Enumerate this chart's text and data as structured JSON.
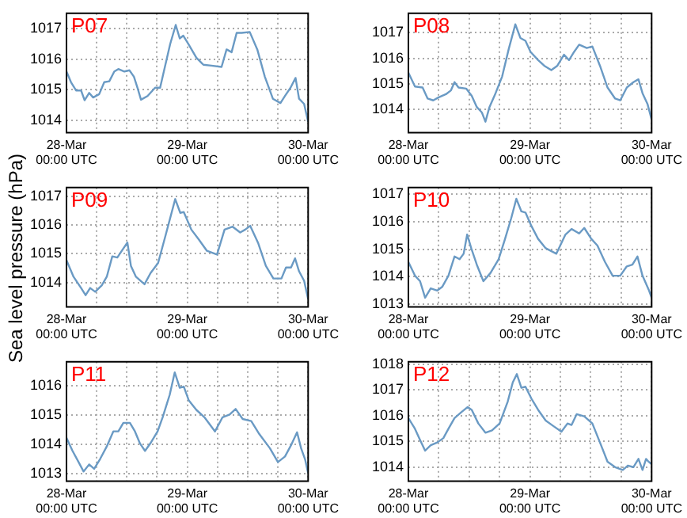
{
  "chart_data": [
    {
      "type": "line",
      "title": "P07",
      "ylabel": "Sea level pressure (hPa)",
      "color": "#6a9ac4",
      "grid": true,
      "xlim": [
        "--03-28T00:00",
        "--03-30T00:00"
      ],
      "xticks": [
        {
          "value": "--03-28T00:00",
          "label": "28-Mar\n00:00 UTC"
        },
        {
          "value": "--03-28T06:00",
          "label": null
        },
        {
          "value": "--03-28T12:00",
          "label": null
        },
        {
          "value": "--03-28T18:00",
          "label": null
        },
        {
          "value": "--03-29T00:00",
          "label": "29-Mar\n00:00 UTC"
        },
        {
          "value": "--03-29T06:00",
          "label": null
        },
        {
          "value": "--03-29T12:00",
          "label": null
        },
        {
          "value": "--03-29T18:00",
          "label": null
        },
        {
          "value": "--03-30T00:00",
          "label": "30-Mar\n00:00 UTC"
        }
      ],
      "ylim": [
        1013.6,
        1017.5
      ],
      "yticks": [
        1014,
        1015,
        1016,
        1017
      ],
      "x": [
        "--03-28T00:00",
        "--03-28T00:54",
        "--03-28T01:54",
        "--03-28T02:54",
        "--03-28T03:36",
        "--03-28T04:30",
        "--03-28T05:18",
        "--03-28T06:30",
        "--03-28T07:30",
        "--03-28T08:30",
        "--03-28T09:30",
        "--03-28T10:18",
        "--03-28T11:30",
        "--03-28T12:30",
        "--03-28T13:24",
        "--03-28T14:06",
        "--03-28T14:48",
        "--03-28T16:06",
        "--03-28T17:36",
        "--03-28T18:36",
        "--03-28T19:36",
        "--03-28T20:36",
        "--03-28T21:42",
        "--03-28T22:30",
        "--03-28T23:12",
        "--03-29T00:12",
        "--03-29T01:48",
        "--03-29T03:12",
        "--03-29T04:48",
        "--03-29T06:48",
        "--03-29T07:48",
        "--03-29T08:48",
        "--03-29T09:48",
        "--03-29T10:48",
        "--03-29T12:24",
        "--03-29T13:54",
        "--03-29T15:24",
        "--03-29T17:00",
        "--03-29T18:30",
        "--03-29T19:24",
        "--03-29T20:30",
        "--03-29T21:30",
        "--03-29T22:12",
        "--03-29T23:12",
        "--03-30T00:00"
      ],
      "values": [
        1015.6,
        1015.25,
        1014.98,
        1014.98,
        1014.66,
        1014.9,
        1014.75,
        1014.86,
        1015.25,
        1015.28,
        1015.6,
        1015.68,
        1015.6,
        1015.64,
        1015.43,
        1015.07,
        1014.68,
        1014.8,
        1015.07,
        1015.07,
        1015.79,
        1016.5,
        1017.12,
        1016.68,
        1016.77,
        1016.5,
        1016.05,
        1015.82,
        1015.79,
        1015.75,
        1016.32,
        1016.23,
        1016.86,
        1016.86,
        1016.89,
        1016.32,
        1015.43,
        1014.71,
        1014.57,
        1014.8,
        1015.07,
        1015.39,
        1014.71,
        1014.54,
        1013.96
      ]
    },
    {
      "type": "line",
      "title": "P08",
      "color": "#6a9ac4",
      "grid": true,
      "xlim": [
        "--03-28T00:00",
        "--03-30T00:00"
      ],
      "xticks": [
        {
          "value": "--03-28T00:00",
          "label": "28-Mar\n00:00 UTC"
        },
        {
          "value": "--03-28T06:00",
          "label": null
        },
        {
          "value": "--03-28T12:00",
          "label": null
        },
        {
          "value": "--03-28T18:00",
          "label": null
        },
        {
          "value": "--03-29T00:00",
          "label": "29-Mar\n00:00 UTC"
        },
        {
          "value": "--03-29T06:00",
          "label": null
        },
        {
          "value": "--03-29T12:00",
          "label": null
        },
        {
          "value": "--03-29T18:00",
          "label": null
        },
        {
          "value": "--03-30T00:00",
          "label": "30-Mar\n00:00 UTC"
        }
      ],
      "ylim": [
        1013.1,
        1017.75
      ],
      "yticks": [
        1014,
        1015,
        1016,
        1017
      ],
      "x": [
        "--03-28T00:00",
        "--03-28T01:18",
        "--03-28T02:48",
        "--03-28T03:48",
        "--03-28T04:54",
        "--03-28T05:54",
        "--03-28T07:24",
        "--03-28T08:24",
        "--03-28T09:06",
        "--03-28T09:54",
        "--03-28T11:24",
        "--03-28T12:30",
        "--03-28T13:30",
        "--03-28T14:30",
        "--03-28T15:12",
        "--03-28T16:00",
        "--03-28T17:12",
        "--03-28T18:30",
        "--03-28T19:48",
        "--03-28T21:06",
        "--03-28T22:06",
        "--03-28T23:06",
        "--03-29T00:06",
        "--03-29T01:36",
        "--03-29T02:48",
        "--03-29T04:12",
        "--03-29T05:24",
        "--03-29T06:42",
        "--03-29T07:42",
        "--03-29T08:42",
        "--03-29T09:42",
        "--03-29T11:12",
        "--03-29T12:18",
        "--03-29T13:48",
        "--03-29T15:18",
        "--03-29T16:48",
        "--03-29T17:48",
        "--03-29T19:06",
        "--03-29T20:24",
        "--03-29T21:24",
        "--03-29T22:12",
        "--03-29T23:12",
        "--03-30T00:00"
      ],
      "values": [
        1015.44,
        1014.9,
        1014.86,
        1014.43,
        1014.36,
        1014.47,
        1014.6,
        1014.75,
        1015.07,
        1014.86,
        1014.82,
        1014.54,
        1014.1,
        1013.89,
        1013.53,
        1014.1,
        1014.64,
        1015.29,
        1016.36,
        1017.32,
        1016.79,
        1016.68,
        1016.25,
        1015.93,
        1015.71,
        1015.54,
        1015.71,
        1016.14,
        1015.93,
        1016.25,
        1016.53,
        1016.4,
        1016.46,
        1015.71,
        1014.86,
        1014.43,
        1014.36,
        1014.86,
        1015.07,
        1015.18,
        1014.64,
        1014.21,
        1013.61
      ]
    },
    {
      "type": "line",
      "title": "P09",
      "color": "#6a9ac4",
      "grid": true,
      "xlim": [
        "--03-28T00:00",
        "--03-30T00:00"
      ],
      "xticks": [
        {
          "value": "--03-28T00:00",
          "label": "28-Mar\n00:00 UTC"
        },
        {
          "value": "--03-28T06:00",
          "label": null
        },
        {
          "value": "--03-28T12:00",
          "label": null
        },
        {
          "value": "--03-28T18:00",
          "label": null
        },
        {
          "value": "--03-29T00:00",
          "label": "29-Mar\n00:00 UTC"
        },
        {
          "value": "--03-29T06:00",
          "label": null
        },
        {
          "value": "--03-29T12:00",
          "label": null
        },
        {
          "value": "--03-29T18:00",
          "label": null
        },
        {
          "value": "--03-30T00:00",
          "label": "30-Mar\n00:00 UTC"
        }
      ],
      "ylim": [
        1013.15,
        1017.3
      ],
      "yticks": [
        1014,
        1015,
        1016,
        1017
      ],
      "x": [
        "--03-28T00:00",
        "--03-28T01:24",
        "--03-28T02:54",
        "--03-28T03:48",
        "--03-28T04:42",
        "--03-28T05:42",
        "--03-28T07:00",
        "--03-28T08:00",
        "--03-28T09:06",
        "--03-28T10:06",
        "--03-28T11:12",
        "--03-28T12:06",
        "--03-28T12:48",
        "--03-28T13:48",
        "--03-28T15:30",
        "--03-28T16:42",
        "--03-28T18:12",
        "--03-28T19:42",
        "--03-28T21:36",
        "--03-28T22:36",
        "--03-28T23:18",
        "--03-29T00:48",
        "--03-29T02:18",
        "--03-29T03:54",
        "--03-29T05:54",
        "--03-29T07:24",
        "--03-29T09:00",
        "--03-29T10:30",
        "--03-29T11:30",
        "--03-29T12:30",
        "--03-29T14:06",
        "--03-29T15:36",
        "--03-29T17:06",
        "--03-29T18:42",
        "--03-29T19:36",
        "--03-29T20:36",
        "--03-29T21:24",
        "--03-29T22:12",
        "--03-29T23:12",
        "--03-30T00:00"
      ],
      "values": [
        1014.78,
        1014.2,
        1013.81,
        1013.56,
        1013.81,
        1013.68,
        1013.9,
        1014.2,
        1014.91,
        1014.87,
        1015.16,
        1015.39,
        1014.58,
        1014.2,
        1013.94,
        1014.33,
        1014.68,
        1015.65,
        1016.9,
        1016.42,
        1016.45,
        1015.84,
        1015.49,
        1015.1,
        1014.97,
        1015.84,
        1015.94,
        1015.74,
        1015.84,
        1015.97,
        1015.36,
        1014.58,
        1014.14,
        1014.14,
        1014.52,
        1014.52,
        1014.84,
        1014.39,
        1014.06,
        1013.42
      ]
    },
    {
      "type": "line",
      "title": "P10",
      "color": "#6a9ac4",
      "grid": true,
      "xlim": [
        "--03-28T00:00",
        "--03-30T00:00"
      ],
      "xticks": [
        {
          "value": "--03-28T00:00",
          "label": "28-Mar\n00:00 UTC"
        },
        {
          "value": "--03-28T06:00",
          "label": null
        },
        {
          "value": "--03-28T12:00",
          "label": null
        },
        {
          "value": "--03-28T18:00",
          "label": null
        },
        {
          "value": "--03-29T00:00",
          "label": "29-Mar\n00:00 UTC"
        },
        {
          "value": "--03-29T06:00",
          "label": null
        },
        {
          "value": "--03-29T12:00",
          "label": null
        },
        {
          "value": "--03-29T18:00",
          "label": null
        },
        {
          "value": "--03-30T00:00",
          "label": "30-Mar\n00:00 UTC"
        }
      ],
      "ylim": [
        1012.9,
        1017.25
      ],
      "yticks": [
        1013,
        1014,
        1015,
        1016,
        1017
      ],
      "x": [
        "--03-28T00:00",
        "--03-28T01:18",
        "--03-28T02:18",
        "--03-28T03:18",
        "--03-28T04:24",
        "--03-28T05:42",
        "--03-28T06:42",
        "--03-28T07:54",
        "--03-28T09:06",
        "--03-28T10:06",
        "--03-28T10:54",
        "--03-28T11:36",
        "--03-28T12:24",
        "--03-28T13:30",
        "--03-28T14:48",
        "--03-28T16:12",
        "--03-28T17:48",
        "--03-28T19:00",
        "--03-28T20:18",
        "--03-28T21:18",
        "--03-28T22:18",
        "--03-28T23:06",
        "--03-29T00:18",
        "--03-29T01:36",
        "--03-29T03:06",
        "--03-29T05:12",
        "--03-29T07:00",
        "--03-29T08:12",
        "--03-29T09:42",
        "--03-29T10:42",
        "--03-29T12:06",
        "--03-29T13:18",
        "--03-29T14:48",
        "--03-29T16:18",
        "--03-29T17:48",
        "--03-29T19:06",
        "--03-29T20:12",
        "--03-29T21:12",
        "--03-29T22:12",
        "--03-29T23:24",
        "--03-30T00:00"
      ],
      "values": [
        1014.54,
        1014.04,
        1013.84,
        1013.24,
        1013.58,
        1013.5,
        1013.64,
        1014.04,
        1014.74,
        1014.64,
        1014.84,
        1015.54,
        1015.04,
        1014.44,
        1013.84,
        1014.14,
        1014.64,
        1015.34,
        1016.14,
        1016.84,
        1016.38,
        1016.34,
        1015.84,
        1015.38,
        1015.04,
        1014.84,
        1015.54,
        1015.74,
        1015.58,
        1015.78,
        1015.38,
        1015.14,
        1014.54,
        1014.04,
        1014.04,
        1014.38,
        1014.44,
        1014.74,
        1014.04,
        1013.54,
        1013.24
      ]
    },
    {
      "type": "line",
      "title": "P11",
      "color": "#6a9ac4",
      "grid": true,
      "xlim": [
        "--03-28T00:00",
        "--03-30T00:00"
      ],
      "xticks": [
        {
          "value": "--03-28T00:00",
          "label": "28-Mar\n00:00 UTC"
        },
        {
          "value": "--03-28T06:00",
          "label": null
        },
        {
          "value": "--03-28T12:00",
          "label": null
        },
        {
          "value": "--03-28T18:00",
          "label": null
        },
        {
          "value": "--03-29T00:00",
          "label": "29-Mar\n00:00 UTC"
        },
        {
          "value": "--03-29T06:00",
          "label": null
        },
        {
          "value": "--03-29T12:00",
          "label": null
        },
        {
          "value": "--03-29T18:00",
          "label": null
        },
        {
          "value": "--03-30T00:00",
          "label": "30-Mar\n00:00 UTC"
        }
      ],
      "ylim": [
        1012.75,
        1016.8
      ],
      "yticks": [
        1013,
        1014,
        1015,
        1016
      ],
      "x": [
        "--03-28T00:00",
        "--03-28T01:12",
        "--03-28T02:24",
        "--03-28T03:24",
        "--03-28T04:30",
        "--03-28T05:30",
        "--03-28T06:42",
        "--03-28T08:00",
        "--03-28T09:18",
        "--03-28T10:18",
        "--03-28T11:18",
        "--03-28T12:36",
        "--03-28T13:36",
        "--03-28T14:36",
        "--03-28T15:36",
        "--03-28T16:48",
        "--03-28T18:06",
        "--03-28T19:06",
        "--03-28T20:30",
        "--03-28T21:30",
        "--03-28T22:30",
        "--03-28T23:18",
        "--03-29T00:18",
        "--03-29T01:48",
        "--03-29T03:24",
        "--03-29T05:30",
        "--03-29T07:00",
        "--03-29T08:24",
        "--03-29T09:36",
        "--03-29T11:00",
        "--03-29T12:42",
        "--03-29T14:18",
        "--03-29T16:24",
        "--03-29T18:00",
        "--03-29T19:24",
        "--03-29T20:36",
        "--03-29T21:48",
        "--03-29T22:36",
        "--03-29T23:24",
        "--03-30T00:00"
      ],
      "values": [
        1014.22,
        1013.78,
        1013.4,
        1013.08,
        1013.32,
        1013.17,
        1013.51,
        1013.93,
        1014.44,
        1014.44,
        1014.73,
        1014.73,
        1014.44,
        1014.03,
        1013.78,
        1014.07,
        1014.44,
        1014.92,
        1015.68,
        1016.44,
        1015.92,
        1015.96,
        1015.49,
        1015.17,
        1014.92,
        1014.44,
        1014.92,
        1015.01,
        1015.2,
        1014.86,
        1014.79,
        1014.35,
        1013.87,
        1013.4,
        1013.59,
        1013.97,
        1014.41,
        1013.87,
        1013.49,
        1013.02
      ]
    },
    {
      "type": "line",
      "title": "P12",
      "color": "#6a9ac4",
      "grid": true,
      "xlim": [
        "--03-28T00:00",
        "--03-30T00:00"
      ],
      "xticks": [
        {
          "value": "--03-28T00:00",
          "label": "28-Mar\n00:00 UTC"
        },
        {
          "value": "--03-28T06:00",
          "label": null
        },
        {
          "value": "--03-28T12:00",
          "label": null
        },
        {
          "value": "--03-28T18:00",
          "label": null
        },
        {
          "value": "--03-29T00:00",
          "label": "29-Mar\n00:00 UTC"
        },
        {
          "value": "--03-29T06:00",
          "label": null
        },
        {
          "value": "--03-29T12:00",
          "label": null
        },
        {
          "value": "--03-29T18:00",
          "label": null
        },
        {
          "value": "--03-30T00:00",
          "label": "30-Mar\n00:00 UTC"
        }
      ],
      "ylim": [
        1013.45,
        1018.1
      ],
      "yticks": [
        1014,
        1015,
        1016,
        1017,
        1018
      ],
      "x": [
        "--03-28T00:00",
        "--03-28T01:18",
        "--03-28T02:18",
        "--03-28T03:18",
        "--03-28T04:24",
        "--03-28T05:42",
        "--03-28T06:54",
        "--03-28T07:54",
        "--03-28T09:06",
        "--03-28T10:24",
        "--03-28T11:42",
        "--03-28T12:30",
        "--03-28T13:48",
        "--03-28T15:12",
        "--03-28T16:30",
        "--03-28T18:00",
        "--03-28T19:36",
        "--03-28T20:36",
        "--03-28T21:24",
        "--03-28T22:18",
        "--03-28T23:06",
        "--03-29T00:18",
        "--03-29T01:36",
        "--03-29T03:06",
        "--03-29T04:36",
        "--03-29T06:12",
        "--03-29T07:24",
        "--03-29T08:12",
        "--03-29T09:12",
        "--03-29T10:42",
        "--03-29T12:18",
        "--03-29T13:48",
        "--03-29T15:18",
        "--03-29T16:48",
        "--03-29T18:18",
        "--03-29T19:18",
        "--03-29T20:24",
        "--03-29T21:24",
        "--03-29T22:12",
        "--03-29T22:54",
        "--03-29T23:24",
        "--03-30T00:00"
      ],
      "values": [
        1015.91,
        1015.49,
        1015.06,
        1014.64,
        1014.85,
        1014.96,
        1015.13,
        1015.49,
        1015.91,
        1016.13,
        1016.34,
        1016.23,
        1015.7,
        1015.34,
        1015.43,
        1015.7,
        1016.55,
        1017.3,
        1017.62,
        1017.09,
        1017.13,
        1016.66,
        1016.23,
        1015.81,
        1015.6,
        1015.38,
        1015.7,
        1015.64,
        1016.06,
        1015.98,
        1015.7,
        1014.96,
        1014.21,
        1014.0,
        1013.89,
        1014.06,
        1014.0,
        1014.32,
        1013.89,
        1014.32,
        1014.21,
        1014.11
      ]
    }
  ]
}
